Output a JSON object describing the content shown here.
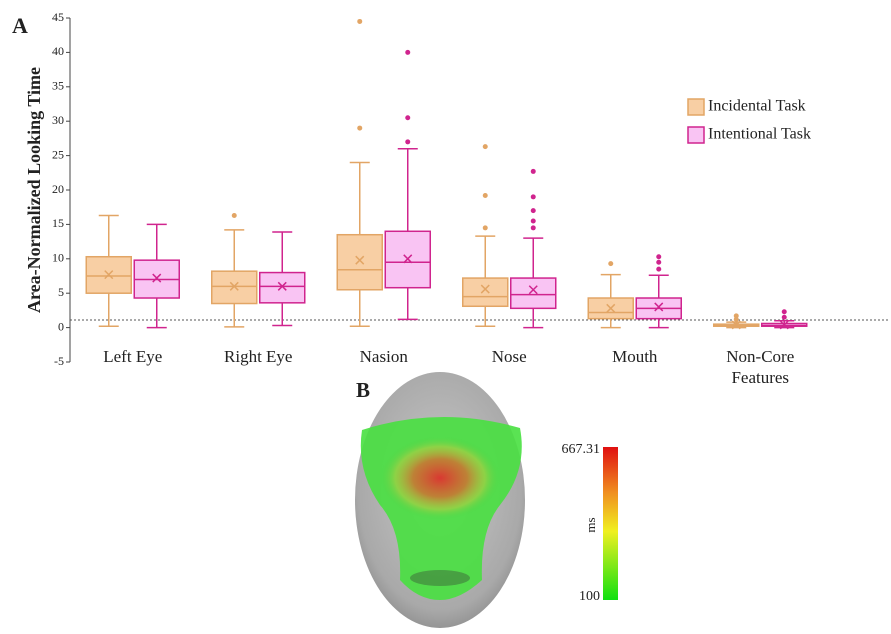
{
  "chart_data": {
    "type": "box",
    "panel_label": "A",
    "ylabel": "Area-Normalized Looking Time",
    "categories": [
      "Left Eye",
      "Right Eye",
      "Nasion",
      "Nose",
      "Mouth",
      "Non-Core Features"
    ],
    "ylim": [
      -5,
      45
    ],
    "yticks": [
      -5,
      0,
      5,
      10,
      15,
      20,
      25,
      30,
      35,
      40,
      45
    ],
    "reference_line": 1.1,
    "legend_position": "upper right",
    "series": [
      {
        "name": "Incidental Task",
        "color": "#f8cfa4",
        "edge_color": "#e2a565",
        "boxes": [
          {
            "low": 0.2,
            "q1": 5,
            "median": 7.5,
            "q3": 10.3,
            "high": 16.3,
            "mean": 7.7,
            "outliers": []
          },
          {
            "low": 0.1,
            "q1": 3.5,
            "median": 6,
            "q3": 8.2,
            "high": 14.2,
            "mean": 6,
            "outliers": [
              16.3
            ]
          },
          {
            "low": 0.2,
            "q1": 5.5,
            "median": 8.4,
            "q3": 13.5,
            "high": 24,
            "mean": 9.8,
            "outliers": [
              29,
              44.5
            ]
          },
          {
            "low": 0.2,
            "q1": 3.1,
            "median": 4.5,
            "q3": 7.2,
            "high": 13.3,
            "mean": 5.6,
            "outliers": [
              14.5,
              19.2,
              26.3
            ]
          },
          {
            "low": 0,
            "q1": 1.3,
            "median": 2.2,
            "q3": 4.3,
            "high": 7.7,
            "mean": 2.8,
            "outliers": [
              9.3
            ]
          },
          {
            "low": 0,
            "q1": 0.2,
            "median": 0.3,
            "q3": 0.5,
            "high": 0.8,
            "mean": 0.4,
            "outliers": [
              1.2,
              1.7
            ]
          }
        ]
      },
      {
        "name": "Intentional Task",
        "color": "#f9c4f3",
        "edge_color": "#d0248e",
        "boxes": [
          {
            "low": 0,
            "q1": 4.3,
            "median": 7,
            "q3": 9.8,
            "high": 15,
            "mean": 7.2,
            "outliers": []
          },
          {
            "low": 0.3,
            "q1": 3.6,
            "median": 6,
            "q3": 8,
            "high": 13.9,
            "mean": 6,
            "outliers": []
          },
          {
            "low": 1.2,
            "q1": 5.8,
            "median": 9.5,
            "q3": 14,
            "high": 26,
            "mean": 10,
            "outliers": [
              27,
              30.5,
              40
            ]
          },
          {
            "low": 0,
            "q1": 2.8,
            "median": 4.8,
            "q3": 7.2,
            "high": 13,
            "mean": 5.5,
            "outliers": [
              14.5,
              15.5,
              17,
              19,
              22.7
            ]
          },
          {
            "low": 0,
            "q1": 1.3,
            "median": 2.8,
            "q3": 4.3,
            "high": 7.6,
            "mean": 3,
            "outliers": [
              8.5,
              9.5,
              10.3
            ]
          },
          {
            "low": 0,
            "q1": 0.2,
            "median": 0.3,
            "q3": 0.6,
            "high": 1,
            "mean": 0.4,
            "outliers": [
              1.5,
              2.3
            ]
          }
        ]
      }
    ]
  },
  "heatmap": {
    "panel_label": "B",
    "colorbar_label": "ms",
    "colorbar_lim": [
      100,
      667.31
    ],
    "colorbar_ticks": [
      100,
      667.31
    ]
  }
}
